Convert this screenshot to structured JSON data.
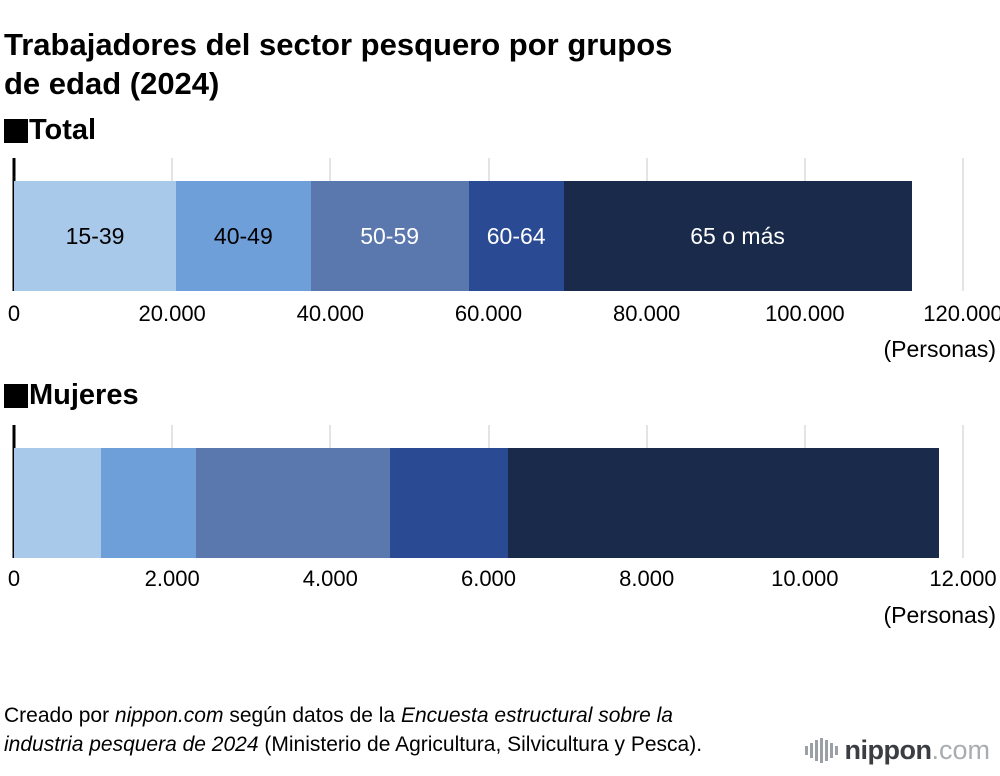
{
  "page": {
    "title": "Trabajadores del sector pesquero por grupos\nde edad (2024)"
  },
  "chart_data": [
    {
      "type": "bar",
      "orientation": "horizontal",
      "stacked": true,
      "section_label": "Total",
      "unit_label": "(Personas)",
      "xlim": [
        0,
        120000
      ],
      "xmax": 120000,
      "grid": true,
      "ticks": [
        "0",
        "20.000",
        "40.000",
        "60.000",
        "80.000",
        "100.000",
        "120.000"
      ],
      "categories": [
        "15-39",
        "40-49",
        "50-59",
        "60-64",
        "65 o más"
      ],
      "segments": [
        {
          "category": "15-39",
          "label": "15-39",
          "value": 20500,
          "color": "#a9c9eb",
          "label_color": "#000000"
        },
        {
          "category": "40-49",
          "label": "40-49",
          "value": 17000,
          "color": "#6f9fd9",
          "label_color": "#000000"
        },
        {
          "category": "50-59",
          "label": "50-59",
          "value": 20000,
          "color": "#5a77ae",
          "label_color": "#ffffff"
        },
        {
          "category": "60-64",
          "label": "60-64",
          "value": 12000,
          "color": "#2b4a94",
          "label_color": "#ffffff"
        },
        {
          "category": "65 o más",
          "label": "65 o más",
          "value": 44000,
          "color": "#1a2a4a",
          "label_color": "#ffffff"
        }
      ]
    },
    {
      "type": "bar",
      "orientation": "horizontal",
      "stacked": true,
      "section_label": "Mujeres",
      "unit_label": "(Personas)",
      "xlim": [
        0,
        12000
      ],
      "xmax": 12000,
      "grid": true,
      "ticks": [
        "0",
        "2.000",
        "4.000",
        "6.000",
        "8.000",
        "10.000",
        "12.000"
      ],
      "categories": [
        "15-39",
        "40-49",
        "50-59",
        "60-64",
        "65 o más"
      ],
      "segments": [
        {
          "category": "15-39",
          "label": "",
          "value": 1100,
          "color": "#a9c9eb",
          "label_color": "#000000"
        },
        {
          "category": "40-49",
          "label": "",
          "value": 1200,
          "color": "#6f9fd9",
          "label_color": "#000000"
        },
        {
          "category": "50-59",
          "label": "",
          "value": 2450,
          "color": "#5a77ae",
          "label_color": "#ffffff"
        },
        {
          "category": "60-64",
          "label": "",
          "value": 1500,
          "color": "#2b4a94",
          "label_color": "#ffffff"
        },
        {
          "category": "65 o más",
          "label": "",
          "value": 5450,
          "color": "#1a2a4a",
          "label_color": "#ffffff"
        }
      ]
    }
  ],
  "footer": {
    "runs": [
      {
        "text": "Creado por "
      },
      {
        "text": "nippon.com"
      },
      {
        "text": " según datos de la "
      },
      {
        "text": "Encuesta estructural sobre la industria pesquera de 2024"
      },
      {
        "text": " (Ministerio de Agricultura, Silvicultura y Pesca)."
      }
    ]
  },
  "logo": {
    "brand": "nippon",
    "suffix": ".com"
  }
}
